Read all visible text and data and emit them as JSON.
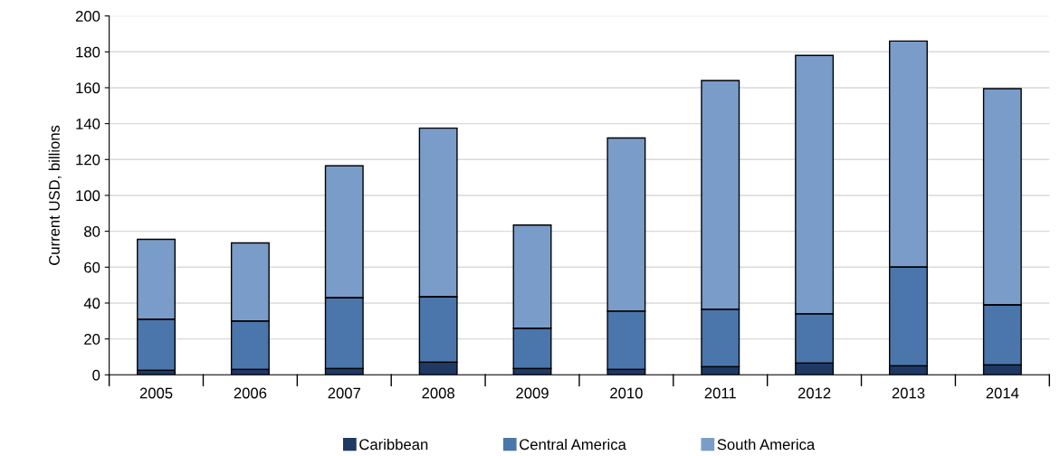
{
  "chart_data": {
    "type": "bar",
    "stacked": true,
    "ylabel": "Current USD, billions",
    "categories": [
      "2005",
      "2006",
      "2007",
      "2008",
      "2009",
      "2010",
      "2011",
      "2012",
      "2013",
      "2014"
    ],
    "series": [
      {
        "name": "Caribbean",
        "color": "#1f3864",
        "values": [
          2.5,
          3,
          3.5,
          7,
          3.5,
          3,
          4.5,
          6.5,
          5,
          5.5
        ]
      },
      {
        "name": "Central America",
        "color": "#4a76ab",
        "values": [
          28.5,
          27,
          39.5,
          36.5,
          22.5,
          32.5,
          32,
          27.5,
          55,
          33.5
        ]
      },
      {
        "name": "South America",
        "color": "#7a9cc8",
        "values": [
          44.5,
          43.5,
          73.5,
          94,
          57.5,
          96.5,
          127.5,
          144,
          126,
          120.5
        ]
      }
    ],
    "ylim": [
      0,
      200
    ],
    "yticks": [
      0,
      20,
      40,
      60,
      80,
      100,
      120,
      140,
      160,
      180,
      200
    ],
    "grid": "y",
    "legend": "bottom"
  }
}
